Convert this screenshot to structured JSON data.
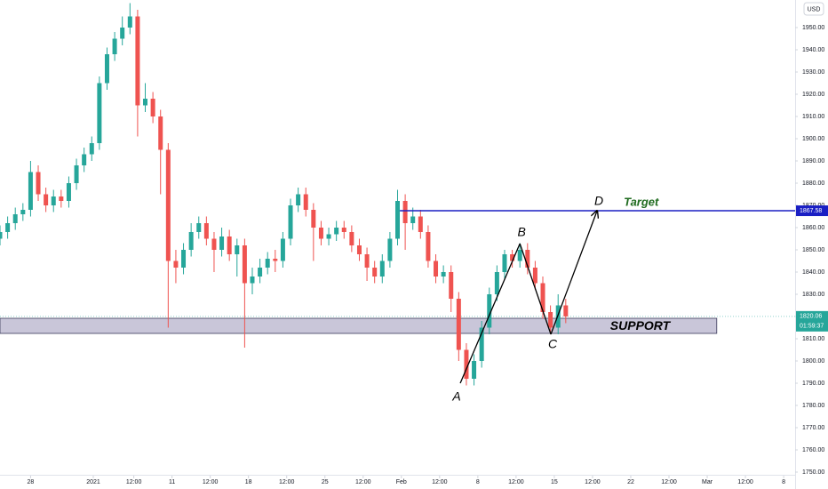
{
  "chart_data": {
    "type": "candlestick",
    "currency": "USD",
    "x": [
      0,
      2,
      4,
      6,
      8,
      10,
      12,
      14,
      16,
      18,
      20,
      22,
      24,
      26,
      28,
      30,
      32,
      34,
      36,
      38,
      40,
      42,
      44,
      46,
      48,
      50,
      52,
      54,
      56,
      58,
      60,
      62,
      64,
      66,
      68,
      70,
      72,
      74,
      76,
      78,
      80,
      82,
      84,
      86,
      88,
      90,
      92,
      94,
      96,
      98,
      100,
      102,
      104,
      106,
      108,
      110,
      112,
      114,
      116,
      118,
      120,
      122,
      124,
      126,
      128,
      130,
      132,
      134,
      136,
      138,
      140,
      142,
      144,
      146,
      148
    ],
    "open": [
      1855,
      1858,
      1862,
      1866,
      1868,
      1885,
      1875,
      1870,
      1874,
      1872,
      1880,
      1888,
      1893,
      1898,
      1925,
      1938,
      1945,
      1950,
      1955,
      1915,
      1918,
      1910,
      1895,
      1845,
      1842,
      1850,
      1858,
      1862,
      1855,
      1850,
      1856,
      1848,
      1852,
      1835,
      1838,
      1842,
      1846,
      1845,
      1855,
      1870,
      1875,
      1868,
      1860,
      1855,
      1857,
      1860,
      1858,
      1852,
      1848,
      1842,
      1838,
      1845,
      1855,
      1872,
      1862,
      1865,
      1858,
      1845,
      1838,
      1840,
      1828,
      1805,
      1792,
      1800,
      1815,
      1830,
      1840,
      1848,
      1845,
      1850,
      1842,
      1835,
      1822,
      1815,
      1825
    ],
    "high": [
      1861,
      1865,
      1869,
      1871,
      1890,
      1888,
      1878,
      1877,
      1877,
      1883,
      1891,
      1896,
      1901,
      1928,
      1941,
      1948,
      1955,
      1961,
      1958,
      1925,
      1921,
      1913,
      1898,
      1850,
      1853,
      1862,
      1865,
      1865,
      1858,
      1860,
      1859,
      1855,
      1855,
      1842,
      1846,
      1849,
      1850,
      1858,
      1873,
      1878,
      1878,
      1871,
      1863,
      1860,
      1863,
      1863,
      1861,
      1855,
      1851,
      1845,
      1848,
      1858,
      1877,
      1875,
      1869,
      1868,
      1861,
      1848,
      1843,
      1843,
      1831,
      1808,
      1803,
      1818,
      1833,
      1843,
      1850,
      1850,
      1853,
      1853,
      1845,
      1838,
      1825,
      1830,
      1828
    ],
    "low": [
      1852,
      1855,
      1859,
      1863,
      1865,
      1872,
      1867,
      1867,
      1869,
      1869,
      1877,
      1885,
      1890,
      1895,
      1922,
      1935,
      1942,
      1947,
      1901,
      1912,
      1907,
      1875,
      1815,
      1835,
      1839,
      1847,
      1855,
      1852,
      1840,
      1847,
      1845,
      1838,
      1806,
      1830,
      1835,
      1839,
      1840,
      1842,
      1852,
      1867,
      1865,
      1845,
      1852,
      1852,
      1854,
      1855,
      1849,
      1845,
      1836,
      1835,
      1835,
      1842,
      1852,
      1850,
      1859,
      1855,
      1842,
      1835,
      1835,
      1822,
      1800,
      1789,
      1789,
      1797,
      1812,
      1827,
      1837,
      1842,
      1842,
      1839,
      1832,
      1819,
      1812,
      1812,
      1817
    ],
    "close": [
      1858,
      1862,
      1866,
      1868,
      1885,
      1875,
      1870,
      1874,
      1872,
      1880,
      1888,
      1893,
      1898,
      1925,
      1938,
      1945,
      1950,
      1955,
      1915,
      1918,
      1910,
      1895,
      1845,
      1842,
      1850,
      1858,
      1862,
      1855,
      1850,
      1856,
      1848,
      1852,
      1835,
      1838,
      1842,
      1846,
      1845,
      1855,
      1870,
      1875,
      1868,
      1860,
      1855,
      1857,
      1860,
      1858,
      1852,
      1848,
      1842,
      1838,
      1845,
      1855,
      1872,
      1862,
      1865,
      1858,
      1845,
      1838,
      1840,
      1828,
      1805,
      1792,
      1800,
      1815,
      1830,
      1840,
      1848,
      1845,
      1850,
      1842,
      1835,
      1822,
      1815,
      1825,
      1820.06
    ],
    "up_color": "#26a69a",
    "down_color": "#ef5350",
    "xlim": [
      0,
      208
    ],
    "ylim": [
      1748.4,
      1962.4
    ],
    "xticks": [
      {
        "value": 8,
        "label": "28"
      },
      {
        "value": 24.4,
        "label": "2021"
      },
      {
        "value": 35,
        "label": "12:00"
      },
      {
        "value": 45,
        "label": "11"
      },
      {
        "value": 55,
        "label": "12:00"
      },
      {
        "value": 65,
        "label": "18"
      },
      {
        "value": 75,
        "label": "12:00"
      },
      {
        "value": 85,
        "label": "25"
      },
      {
        "value": 95,
        "label": "12:00"
      },
      {
        "value": 105,
        "label": "Feb"
      },
      {
        "value": 115,
        "label": "12:00"
      },
      {
        "value": 125,
        "label": "8"
      },
      {
        "value": 135,
        "label": "12:00"
      },
      {
        "value": 145,
        "label": "15"
      },
      {
        "value": 155,
        "label": "12:00"
      },
      {
        "value": 165,
        "label": "22"
      },
      {
        "value": 175,
        "label": "12:00"
      },
      {
        "value": 185,
        "label": "Mar"
      },
      {
        "value": 195,
        "label": "12:00"
      },
      {
        "value": 205,
        "label": "8"
      }
    ],
    "yticks": [
      {
        "value": 1750,
        "label": "1750.00"
      },
      {
        "value": 1760,
        "label": "1760.00"
      },
      {
        "value": 1770,
        "label": "1770.00"
      },
      {
        "value": 1780,
        "label": "1780.00"
      },
      {
        "value": 1790,
        "label": "1790.00"
      },
      {
        "value": 1800,
        "label": "1800.00"
      },
      {
        "value": 1810,
        "label": "1810.00"
      },
      {
        "value": 1820,
        "label": "1820.00"
      },
      {
        "value": 1830,
        "label": "1830.00"
      },
      {
        "value": 1840,
        "label": "1840.00"
      },
      {
        "value": 1850,
        "label": "1850.00"
      },
      {
        "value": 1860,
        "label": "1860.00"
      },
      {
        "value": 1870,
        "label": "1870.00"
      },
      {
        "value": 1880,
        "label": "1880.00"
      },
      {
        "value": 1890,
        "label": "1890.00"
      },
      {
        "value": 1900,
        "label": "1900.00"
      },
      {
        "value": 1910,
        "label": "1910.00"
      },
      {
        "value": 1920,
        "label": "1920.00"
      },
      {
        "value": 1930,
        "label": "1930.00"
      },
      {
        "value": 1940,
        "label": "1940.00"
      },
      {
        "value": 1950,
        "label": "1950.00"
      }
    ],
    "grid": false,
    "countdown": "01:59:37",
    "support": {
      "label": "SUPPORT",
      "x": [
        0,
        187.5
      ],
      "y": [
        1812.4,
        1819.2
      ],
      "color": "#b7b3cc"
    },
    "target": {
      "label": "Target",
      "value": 1867.58,
      "x": 104.6,
      "color": "#1a1fc4",
      "label_color": "#1f6b1f"
    },
    "pattern": {
      "color": "#000000",
      "points": [
        {
          "label": "A",
          "x": 120.4,
          "y": 1790
        },
        {
          "label": "B",
          "x": 136,
          "y": 1852.8
        },
        {
          "label": "C",
          "x": 144.1,
          "y": 1812
        },
        {
          "label": "D",
          "x": 156.2,
          "y": 1867.6
        }
      ]
    }
  }
}
